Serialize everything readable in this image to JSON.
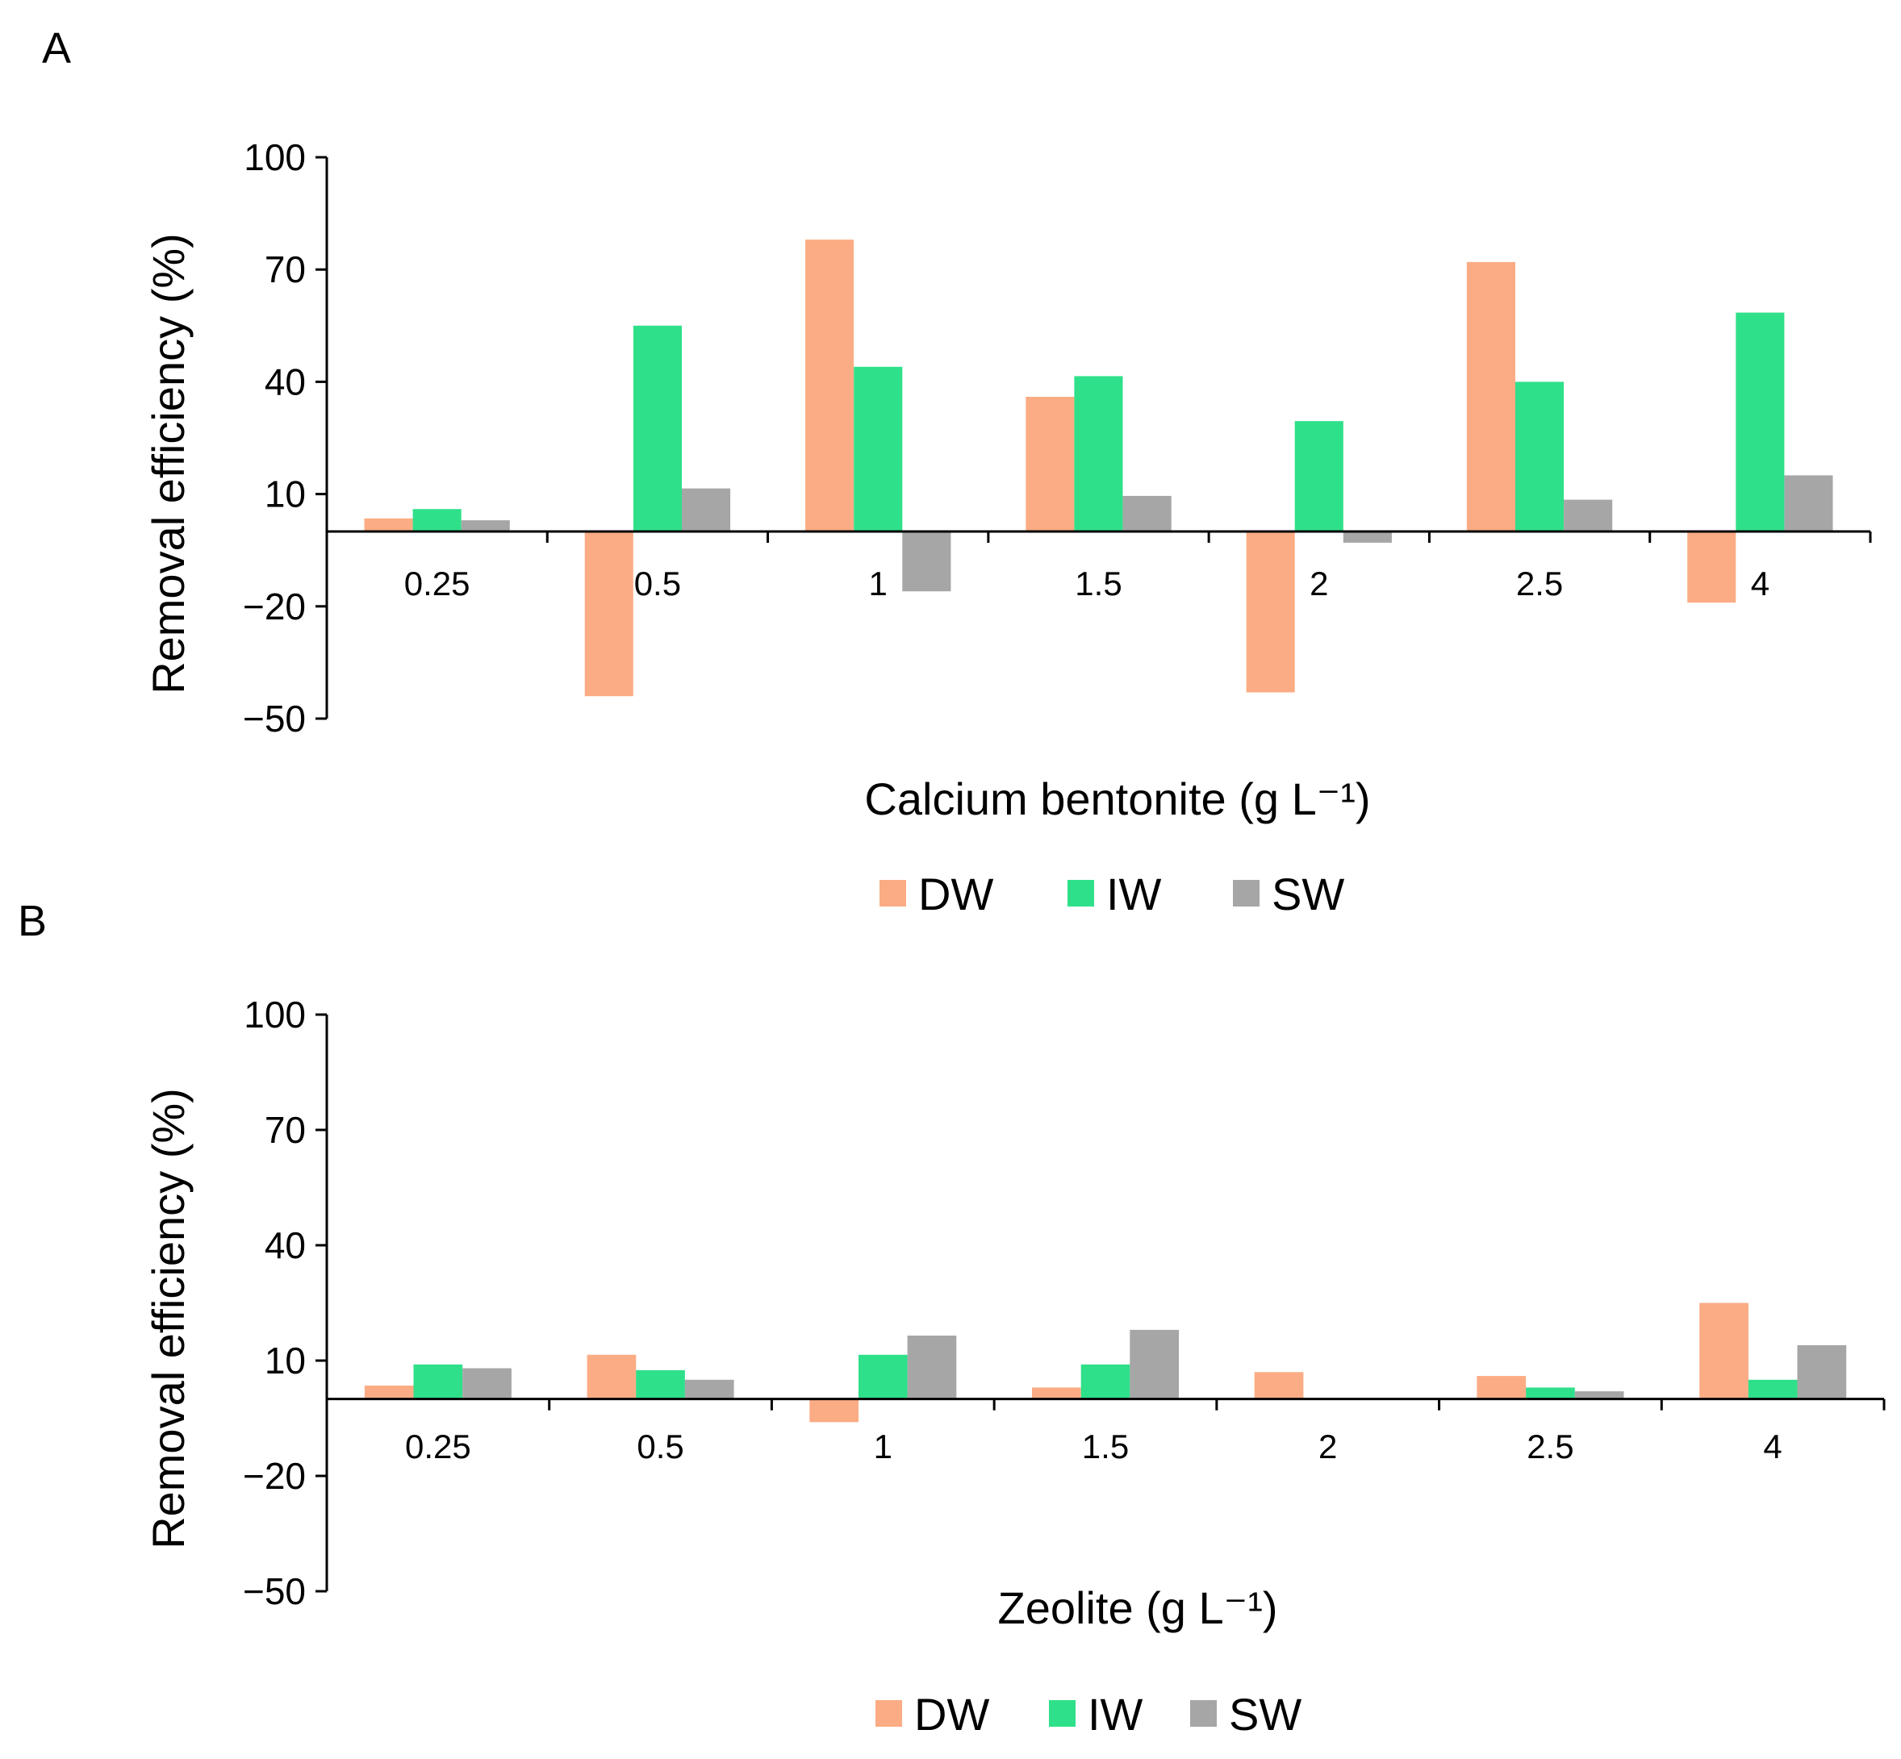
{
  "colors": {
    "DW": "#fbac84",
    "IW": "#2fe08a",
    "SW": "#a6a6a6"
  },
  "chart_data": [
    {
      "panel": "A",
      "type": "bar",
      "title": "",
      "xlabel": "Calcium bentonite (g L⁻¹)",
      "ylabel": "Removal efficiency (%)",
      "ylim": [
        -50,
        100
      ],
      "yticks": [
        100,
        70,
        40,
        10,
        -20,
        -50
      ],
      "categories": [
        "0.25",
        "0.5",
        "1",
        "1.5",
        "2",
        "2.5",
        "4"
      ],
      "legend_position": "bottom-center",
      "series": [
        {
          "name": "DW",
          "values": [
            3.5,
            -44,
            78,
            36,
            -43,
            72,
            -19
          ]
        },
        {
          "name": "IW",
          "values": [
            6,
            55,
            44,
            41.5,
            29.5,
            40,
            58.5
          ]
        },
        {
          "name": "SW",
          "values": [
            3,
            11.5,
            -16,
            9.5,
            -3,
            8.5,
            15
          ]
        }
      ]
    },
    {
      "panel": "B",
      "type": "bar",
      "title": "",
      "xlabel": "Zeolite (g L⁻¹)",
      "ylabel": "Removal efficiency (%)",
      "ylim": [
        -50,
        100
      ],
      "yticks": [
        100,
        70,
        40,
        10,
        -20,
        -50
      ],
      "categories": [
        "0.25",
        "0.5",
        "1",
        "1.5",
        "2",
        "2.5",
        "4"
      ],
      "legend_position": "bottom-center",
      "series": [
        {
          "name": "DW",
          "values": [
            3.5,
            11.5,
            -6,
            3,
            7,
            6,
            25
          ]
        },
        {
          "name": "IW",
          "values": [
            9,
            7.5,
            11.5,
            9,
            0,
            3,
            5
          ]
        },
        {
          "name": "SW",
          "values": [
            8,
            5,
            16.5,
            18,
            0,
            2,
            14
          ]
        }
      ]
    }
  ]
}
